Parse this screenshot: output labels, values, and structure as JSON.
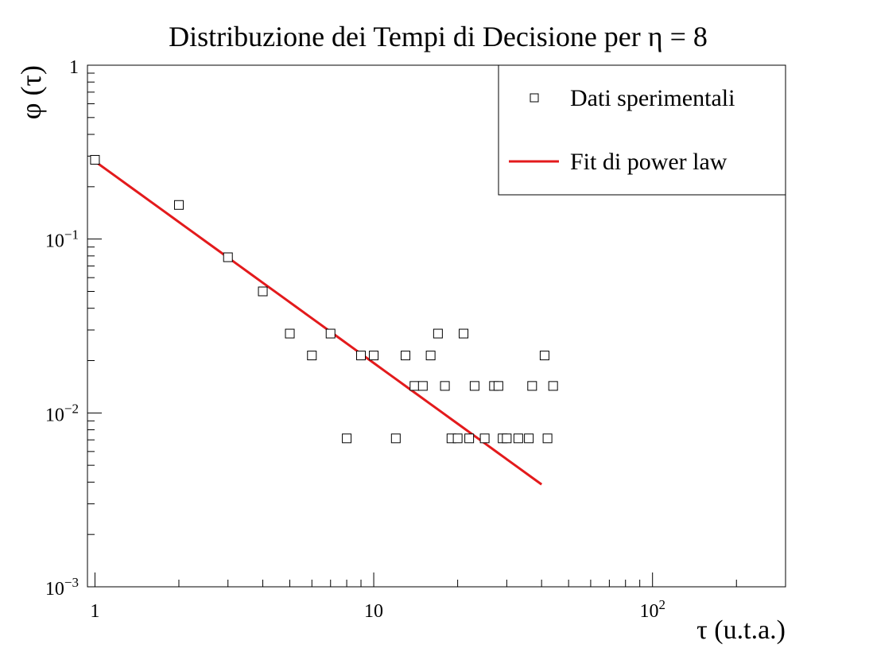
{
  "chart_data": {
    "type": "scatter",
    "title": "Distribuzione dei Tempi di Decisione per η = 8",
    "xlabel": "τ (u.t.a.)",
    "ylabel": "φ (τ)",
    "xscale": "log",
    "yscale": "log",
    "xlim": [
      0.94,
      300
    ],
    "ylim": [
      0.001,
      1
    ],
    "x_ticks": [
      {
        "base": "1",
        "exp": "",
        "value": 1
      },
      {
        "base": "10",
        "exp": "",
        "value": 10
      },
      {
        "base": "10",
        "exp": "2",
        "value": 100
      }
    ],
    "y_ticks": [
      {
        "base": "10",
        "exp": "−3",
        "value": 0.001
      },
      {
        "base": "10",
        "exp": "−2",
        "value": 0.01
      },
      {
        "base": "10",
        "exp": "−1",
        "value": 0.1
      },
      {
        "base": "1",
        "exp": "",
        "value": 1
      }
    ],
    "legend": {
      "position": "top-right",
      "entries": [
        {
          "label": "Dati sperimentali",
          "symbol": "open-square"
        },
        {
          "label": "Fit di power law",
          "symbol": "line",
          "color": "#e31a1c"
        }
      ]
    },
    "series": [
      {
        "name": "Dati sperimentali",
        "marker": "open-square",
        "color": "#000000",
        "points": [
          [
            1,
            0.2857
          ],
          [
            2,
            0.1571
          ],
          [
            3,
            0.0786
          ],
          [
            4,
            0.05
          ],
          [
            5,
            0.0286
          ],
          [
            6,
            0.0214
          ],
          [
            7,
            0.0286
          ],
          [
            8,
            0.00714
          ],
          [
            9,
            0.0214
          ],
          [
            10,
            0.0214
          ],
          [
            12,
            0.00714
          ],
          [
            13,
            0.0214
          ],
          [
            14,
            0.0143
          ],
          [
            15,
            0.0143
          ],
          [
            16,
            0.0214
          ],
          [
            17,
            0.0286
          ],
          [
            18,
            0.0143
          ],
          [
            19,
            0.00714
          ],
          [
            20,
            0.00714
          ],
          [
            21,
            0.0286
          ],
          [
            22,
            0.00714
          ],
          [
            23,
            0.0143
          ],
          [
            25,
            0.00714
          ],
          [
            27,
            0.0143
          ],
          [
            28,
            0.0143
          ],
          [
            29,
            0.00714
          ],
          [
            30,
            0.00714
          ],
          [
            33,
            0.00714
          ],
          [
            36,
            0.00714
          ],
          [
            37,
            0.0143
          ],
          [
            41,
            0.0214
          ],
          [
            42,
            0.00714
          ],
          [
            44,
            0.0143
          ]
        ]
      },
      {
        "name": "Fit di power law",
        "type": "line",
        "color": "#e31a1c",
        "x_range": [
          1,
          40
        ],
        "amplitude": 0.28,
        "exponent": -1.16
      }
    ]
  }
}
